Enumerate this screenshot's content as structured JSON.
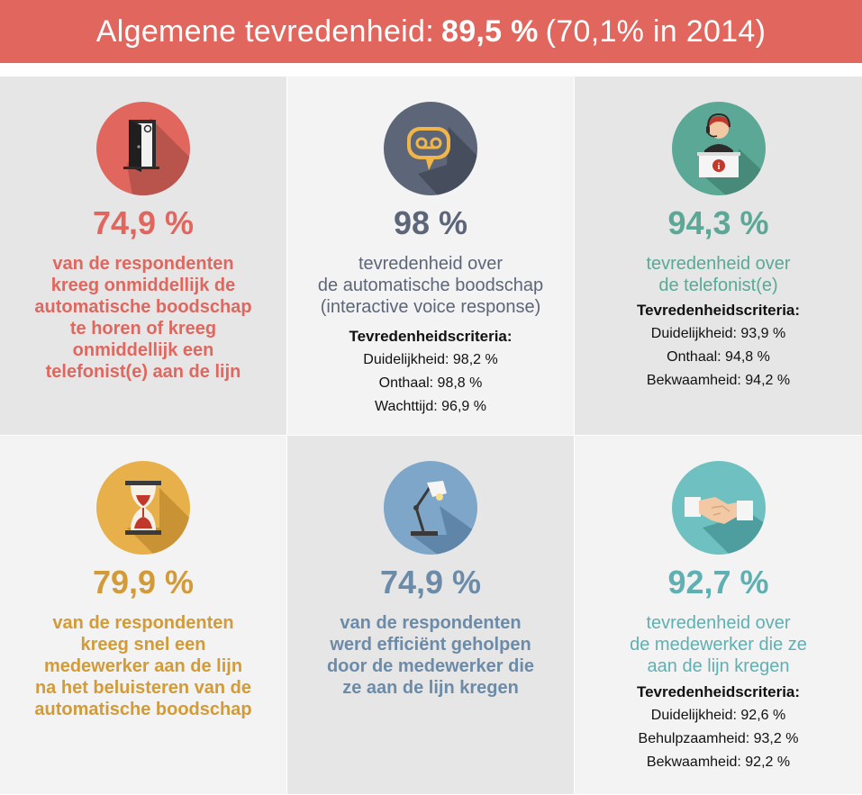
{
  "header": {
    "prefix": "Algemene tevredenheid:",
    "value": "89,5 %",
    "suffix": "(70,1% in 2014)"
  },
  "colors": {
    "red": "#e0665e",
    "slate": "#5d6678",
    "teal_green": "#5aa895",
    "gold": "#d39b38",
    "steel_blue": "#6c8ba8",
    "cyan": "#5fb0b2"
  },
  "cards": [
    {
      "icon": "open-door-icon",
      "percent": "74,9 %",
      "lines": [
        "van de respondenten",
        "kreeg onmiddellijk de",
        "automatische boodschap",
        "te horen of kreeg",
        "onmiddellijk een",
        "telefonist(e) aan de lijn"
      ]
    },
    {
      "icon": "voicemail-bubble-icon",
      "percent": "98 %",
      "lines": [
        "tevredenheid over",
        "de automatische boodschap",
        "(interactive voice response)"
      ],
      "criteria_title": "Tevredenheidscriteria:",
      "criteria": [
        "Duidelijkheid: 98,2 %",
        "Onthaal: 98,8 %",
        "Wachttijd: 96,9 %"
      ]
    },
    {
      "icon": "operator-headset-icon",
      "percent": "94,3 %",
      "lines": [
        "tevredenheid over",
        "de telefonist(e)"
      ],
      "criteria_title": "Tevredenheidscriteria:",
      "criteria": [
        "Duidelijkheid: 93,9 %",
        "Onthaal: 94,8 %",
        "Bekwaamheid: 94,2 %"
      ]
    },
    {
      "icon": "hourglass-icon",
      "percent": "79,9 %",
      "lines": [
        "van de respondenten",
        "kreeg snel een",
        "medewerker aan de lijn",
        "na het beluisteren van de",
        "automatische boodschap"
      ]
    },
    {
      "icon": "desk-lamp-icon",
      "percent": "74,9 %",
      "lines": [
        "van de respondenten",
        "werd efficiënt geholpen",
        "door de medewerker die",
        "ze aan de lijn kregen"
      ]
    },
    {
      "icon": "handshake-icon",
      "percent": "92,7 %",
      "lines": [
        "tevredenheid over",
        "de medewerker die ze",
        "aan de lijn kregen"
      ],
      "criteria_title": "Tevredenheidscriteria:",
      "criteria": [
        "Duidelijkheid: 92,6 %",
        "Behulpzaamheid: 93,2 %",
        "Bekwaamheid: 92,2 %"
      ]
    }
  ]
}
